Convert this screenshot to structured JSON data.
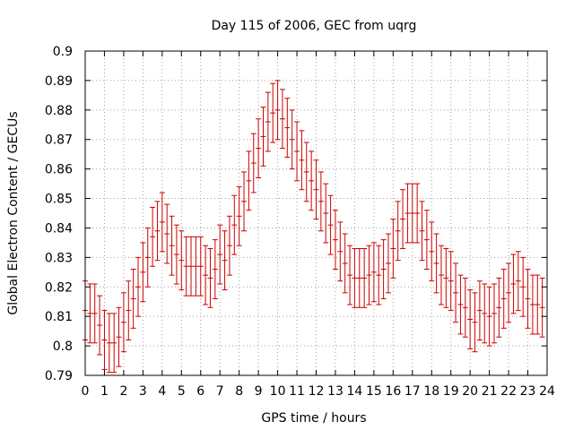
{
  "chart_data": {
    "type": "scatter",
    "title": "Day 115 of 2006, GEC from uqrg",
    "xlabel": "GPS time / hours",
    "ylabel": "Global Electron Content / GECUs",
    "xlim": [
      0,
      24
    ],
    "ylim": [
      0.79,
      0.9
    ],
    "grid": true,
    "x_ticks": [
      "0",
      "1",
      "2",
      "3",
      "4",
      "5",
      "6",
      "7",
      "8",
      "9",
      "10",
      "11",
      "12",
      "13",
      "14",
      "15",
      "16",
      "17",
      "18",
      "19",
      "20",
      "21",
      "22",
      "23",
      "24"
    ],
    "y_ticks": [
      "0.79",
      "0.8",
      "0.81",
      "0.82",
      "0.83",
      "0.84",
      "0.85",
      "0.86",
      "0.87",
      "0.88",
      "0.89",
      "0.9"
    ],
    "error_bar_color": "#cc0000",
    "series": [
      {
        "values": [
          {
            "x": 0.0,
            "y": 0.812,
            "err": 0.01
          },
          {
            "x": 0.25,
            "y": 0.811,
            "err": 0.01
          },
          {
            "x": 0.5,
            "y": 0.811,
            "err": 0.01
          },
          {
            "x": 0.75,
            "y": 0.807,
            "err": 0.01
          },
          {
            "x": 1.0,
            "y": 0.802,
            "err": 0.01
          },
          {
            "x": 1.25,
            "y": 0.801,
            "err": 0.01
          },
          {
            "x": 1.5,
            "y": 0.801,
            "err": 0.01
          },
          {
            "x": 1.75,
            "y": 0.803,
            "err": 0.01
          },
          {
            "x": 2.0,
            "y": 0.808,
            "err": 0.01
          },
          {
            "x": 2.25,
            "y": 0.812,
            "err": 0.01
          },
          {
            "x": 2.5,
            "y": 0.816,
            "err": 0.01
          },
          {
            "x": 2.75,
            "y": 0.82,
            "err": 0.01
          },
          {
            "x": 3.0,
            "y": 0.825,
            "err": 0.01
          },
          {
            "x": 3.25,
            "y": 0.83,
            "err": 0.01
          },
          {
            "x": 3.5,
            "y": 0.837,
            "err": 0.01
          },
          {
            "x": 3.75,
            "y": 0.839,
            "err": 0.01
          },
          {
            "x": 4.0,
            "y": 0.842,
            "err": 0.01
          },
          {
            "x": 4.25,
            "y": 0.838,
            "err": 0.01
          },
          {
            "x": 4.5,
            "y": 0.834,
            "err": 0.01
          },
          {
            "x": 4.75,
            "y": 0.831,
            "err": 0.01
          },
          {
            "x": 5.0,
            "y": 0.829,
            "err": 0.01
          },
          {
            "x": 5.25,
            "y": 0.827,
            "err": 0.01
          },
          {
            "x": 5.5,
            "y": 0.827,
            "err": 0.01
          },
          {
            "x": 5.75,
            "y": 0.827,
            "err": 0.01
          },
          {
            "x": 6.0,
            "y": 0.827,
            "err": 0.01
          },
          {
            "x": 6.25,
            "y": 0.824,
            "err": 0.01
          },
          {
            "x": 6.5,
            "y": 0.823,
            "err": 0.01
          },
          {
            "x": 6.75,
            "y": 0.826,
            "err": 0.01
          },
          {
            "x": 7.0,
            "y": 0.831,
            "err": 0.01
          },
          {
            "x": 7.25,
            "y": 0.829,
            "err": 0.01
          },
          {
            "x": 7.5,
            "y": 0.834,
            "err": 0.01
          },
          {
            "x": 7.75,
            "y": 0.841,
            "err": 0.01
          },
          {
            "x": 8.0,
            "y": 0.844,
            "err": 0.01
          },
          {
            "x": 8.25,
            "y": 0.849,
            "err": 0.01
          },
          {
            "x": 8.5,
            "y": 0.856,
            "err": 0.01
          },
          {
            "x": 8.75,
            "y": 0.862,
            "err": 0.01
          },
          {
            "x": 9.0,
            "y": 0.867,
            "err": 0.01
          },
          {
            "x": 9.25,
            "y": 0.871,
            "err": 0.01
          },
          {
            "x": 9.5,
            "y": 0.876,
            "err": 0.01
          },
          {
            "x": 9.75,
            "y": 0.879,
            "err": 0.01
          },
          {
            "x": 10.0,
            "y": 0.88,
            "err": 0.01
          },
          {
            "x": 10.25,
            "y": 0.877,
            "err": 0.01
          },
          {
            "x": 10.5,
            "y": 0.874,
            "err": 0.01
          },
          {
            "x": 10.75,
            "y": 0.87,
            "err": 0.01
          },
          {
            "x": 11.0,
            "y": 0.866,
            "err": 0.01
          },
          {
            "x": 11.25,
            "y": 0.863,
            "err": 0.01
          },
          {
            "x": 11.5,
            "y": 0.859,
            "err": 0.01
          },
          {
            "x": 11.75,
            "y": 0.856,
            "err": 0.01
          },
          {
            "x": 12.0,
            "y": 0.853,
            "err": 0.01
          },
          {
            "x": 12.25,
            "y": 0.849,
            "err": 0.01
          },
          {
            "x": 12.5,
            "y": 0.845,
            "err": 0.01
          },
          {
            "x": 12.75,
            "y": 0.841,
            "err": 0.01
          },
          {
            "x": 13.0,
            "y": 0.836,
            "err": 0.01
          },
          {
            "x": 13.25,
            "y": 0.832,
            "err": 0.01
          },
          {
            "x": 13.5,
            "y": 0.828,
            "err": 0.01
          },
          {
            "x": 13.75,
            "y": 0.824,
            "err": 0.01
          },
          {
            "x": 14.0,
            "y": 0.823,
            "err": 0.01
          },
          {
            "x": 14.25,
            "y": 0.823,
            "err": 0.01
          },
          {
            "x": 14.5,
            "y": 0.823,
            "err": 0.01
          },
          {
            "x": 14.75,
            "y": 0.824,
            "err": 0.01
          },
          {
            "x": 15.0,
            "y": 0.825,
            "err": 0.01
          },
          {
            "x": 15.25,
            "y": 0.824,
            "err": 0.01
          },
          {
            "x": 15.5,
            "y": 0.826,
            "err": 0.01
          },
          {
            "x": 15.75,
            "y": 0.828,
            "err": 0.01
          },
          {
            "x": 16.0,
            "y": 0.833,
            "err": 0.01
          },
          {
            "x": 16.25,
            "y": 0.839,
            "err": 0.01
          },
          {
            "x": 16.5,
            "y": 0.843,
            "err": 0.01
          },
          {
            "x": 16.75,
            "y": 0.845,
            "err": 0.01
          },
          {
            "x": 17.0,
            "y": 0.845,
            "err": 0.01
          },
          {
            "x": 17.25,
            "y": 0.845,
            "err": 0.01
          },
          {
            "x": 17.5,
            "y": 0.839,
            "err": 0.01
          },
          {
            "x": 17.75,
            "y": 0.836,
            "err": 0.01
          },
          {
            "x": 18.0,
            "y": 0.832,
            "err": 0.01
          },
          {
            "x": 18.25,
            "y": 0.828,
            "err": 0.01
          },
          {
            "x": 18.5,
            "y": 0.824,
            "err": 0.01
          },
          {
            "x": 18.75,
            "y": 0.823,
            "err": 0.01
          },
          {
            "x": 19.0,
            "y": 0.822,
            "err": 0.01
          },
          {
            "x": 19.25,
            "y": 0.818,
            "err": 0.01
          },
          {
            "x": 19.5,
            "y": 0.814,
            "err": 0.01
          },
          {
            "x": 19.75,
            "y": 0.813,
            "err": 0.01
          },
          {
            "x": 20.0,
            "y": 0.809,
            "err": 0.01
          },
          {
            "x": 20.25,
            "y": 0.808,
            "err": 0.01
          },
          {
            "x": 20.5,
            "y": 0.812,
            "err": 0.01
          },
          {
            "x": 20.75,
            "y": 0.811,
            "err": 0.01
          },
          {
            "x": 21.0,
            "y": 0.81,
            "err": 0.01
          },
          {
            "x": 21.25,
            "y": 0.811,
            "err": 0.01
          },
          {
            "x": 21.5,
            "y": 0.813,
            "err": 0.01
          },
          {
            "x": 21.75,
            "y": 0.816,
            "err": 0.01
          },
          {
            "x": 22.0,
            "y": 0.818,
            "err": 0.01
          },
          {
            "x": 22.25,
            "y": 0.821,
            "err": 0.01
          },
          {
            "x": 22.5,
            "y": 0.822,
            "err": 0.01
          },
          {
            "x": 22.75,
            "y": 0.82,
            "err": 0.01
          },
          {
            "x": 23.0,
            "y": 0.816,
            "err": 0.01
          },
          {
            "x": 23.25,
            "y": 0.814,
            "err": 0.01
          },
          {
            "x": 23.5,
            "y": 0.814,
            "err": 0.01
          },
          {
            "x": 23.75,
            "y": 0.813,
            "err": 0.01
          }
        ]
      }
    ]
  }
}
